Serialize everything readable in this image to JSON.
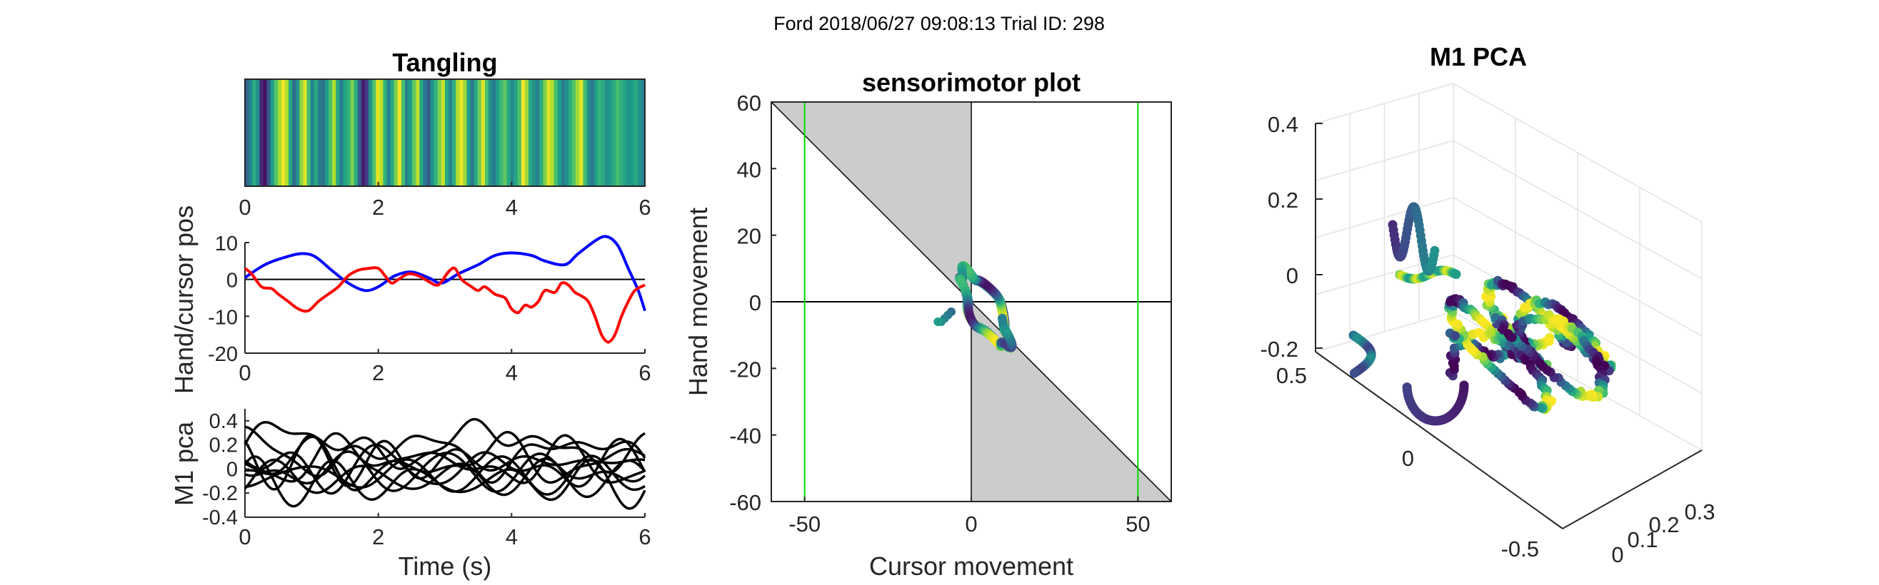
{
  "figure": {
    "suptitle": "Ford 2018/06/27 09:08:13 Trial ID: 298"
  },
  "chart_data": [
    {
      "id": "tangling",
      "type": "heatmap",
      "title": "Tangling",
      "xlim": [
        0,
        6
      ],
      "xticks": [
        "0",
        "2",
        "4",
        "6"
      ],
      "colormap": "viridis",
      "values": [
        0.32,
        0.45,
        0.62,
        0.5,
        0.12,
        0.05,
        0.28,
        0.55,
        0.72,
        0.86,
        0.98,
        0.88,
        0.6,
        0.35,
        0.5,
        0.82,
        0.95,
        0.7,
        0.45,
        0.6,
        0.42,
        0.38,
        0.55,
        0.7,
        0.88,
        0.6,
        0.42,
        0.58,
        0.65,
        0.8,
        0.62,
        0.3,
        0.08,
        0.18,
        0.5,
        0.72,
        0.96,
        0.9,
        0.65,
        0.45,
        0.6,
        0.8,
        0.98,
        0.7,
        0.45,
        0.55,
        0.75,
        0.9,
        0.6,
        0.4,
        0.3,
        0.5,
        0.65,
        0.8,
        0.92,
        0.6,
        0.45,
        0.62,
        0.88,
        0.97,
        0.85,
        0.55,
        0.4,
        0.6,
        0.78,
        0.95,
        0.7,
        0.5,
        0.42,
        0.55,
        0.68,
        0.75,
        0.6,
        0.48,
        0.58,
        0.72,
        0.98,
        0.85,
        0.6,
        0.5,
        0.45,
        0.62,
        0.8,
        0.95,
        0.88,
        0.7,
        0.55,
        0.42,
        0.5,
        0.62,
        0.74,
        0.86,
        0.96,
        0.7,
        0.5,
        0.4,
        0.55,
        0.65,
        0.6,
        0.5,
        0.55,
        0.62,
        0.7,
        0.64,
        0.58,
        0.52,
        0.55,
        0.6,
        0.5,
        0.45
      ]
    },
    {
      "id": "hand-cursor",
      "type": "line",
      "ylabel": "Hand/cursor pos",
      "xlim": [
        0,
        6
      ],
      "ylim": [
        -20,
        10
      ],
      "xticks": [
        "0",
        "2",
        "4",
        "6"
      ],
      "yticks": [
        "10",
        "0",
        "-10",
        "-20"
      ],
      "zero_line": true,
      "series": [
        {
          "color": "#0000ff",
          "points": [
            [
              0,
              0.5
            ],
            [
              0.3,
              4
            ],
            [
              0.6,
              6
            ],
            [
              0.85,
              7
            ],
            [
              1.05,
              6.2
            ],
            [
              1.3,
              2.5
            ],
            [
              1.55,
              -1
            ],
            [
              1.8,
              -3
            ],
            [
              2.0,
              -2
            ],
            [
              2.25,
              1
            ],
            [
              2.5,
              2
            ],
            [
              2.75,
              0.5
            ],
            [
              2.95,
              -1
            ],
            [
              3.2,
              1.5
            ],
            [
              3.5,
              4
            ],
            [
              3.75,
              6.5
            ],
            [
              4.0,
              7.2
            ],
            [
              4.3,
              6.5
            ],
            [
              4.5,
              5
            ],
            [
              4.8,
              4
            ],
            [
              5.0,
              7
            ],
            [
              5.3,
              11
            ],
            [
              5.45,
              11.5
            ],
            [
              5.6,
              9
            ],
            [
              5.75,
              3
            ],
            [
              5.9,
              -3
            ],
            [
              6.0,
              -8.5
            ]
          ]
        },
        {
          "color": "#ff0000",
          "points": [
            [
              0,
              3
            ],
            [
              0.1,
              1.5
            ],
            [
              0.25,
              -2
            ],
            [
              0.4,
              -2.5
            ],
            [
              0.5,
              -4
            ],
            [
              0.65,
              -6
            ],
            [
              0.8,
              -8
            ],
            [
              0.95,
              -8.5
            ],
            [
              1.1,
              -6
            ],
            [
              1.25,
              -4
            ],
            [
              1.4,
              -2
            ],
            [
              1.55,
              1
            ],
            [
              1.7,
              2.5
            ],
            [
              1.85,
              3
            ],
            [
              2.0,
              3
            ],
            [
              2.1,
              1
            ],
            [
              2.2,
              -1
            ],
            [
              2.3,
              0
            ],
            [
              2.45,
              1.5
            ],
            [
              2.6,
              1
            ],
            [
              2.75,
              -0.5
            ],
            [
              2.9,
              -1.5
            ],
            [
              3.05,
              2
            ],
            [
              3.15,
              3
            ],
            [
              3.25,
              0
            ],
            [
              3.4,
              -2
            ],
            [
              3.5,
              -3
            ],
            [
              3.6,
              -2
            ],
            [
              3.75,
              -4
            ],
            [
              3.9,
              -5
            ],
            [
              4.0,
              -8
            ],
            [
              4.1,
              -9
            ],
            [
              4.2,
              -7
            ],
            [
              4.3,
              -7.5
            ],
            [
              4.4,
              -6
            ],
            [
              4.5,
              -3
            ],
            [
              4.65,
              -3.5
            ],
            [
              4.75,
              -1
            ],
            [
              4.85,
              -1.5
            ],
            [
              4.95,
              -3.5
            ],
            [
              5.05,
              -4.5
            ],
            [
              5.15,
              -6
            ],
            [
              5.25,
              -10
            ],
            [
              5.35,
              -15
            ],
            [
              5.45,
              -17
            ],
            [
              5.55,
              -15
            ],
            [
              5.65,
              -10
            ],
            [
              5.75,
              -6
            ],
            [
              5.85,
              -3
            ],
            [
              6.0,
              -1.5
            ]
          ]
        }
      ]
    },
    {
      "id": "m1-pca-trace",
      "type": "line",
      "xlabel": "Time (s)",
      "ylabel": "M1 pca",
      "xlim": [
        0,
        6
      ],
      "ylim": [
        -0.4,
        0.5
      ],
      "xticks": [
        "0",
        "2",
        "4",
        "6"
      ],
      "yticks": [
        "0.4",
        "0.2",
        "0",
        "-0.2",
        "-0.4"
      ],
      "line_color": "#000000",
      "series_count": 10
    },
    {
      "id": "sensorimotor",
      "type": "scatter",
      "title": "sensorimotor plot",
      "xlabel": "Cursor movement",
      "ylabel": "Hand movement",
      "xlim": [
        -60,
        60
      ],
      "ylim": [
        -60,
        60
      ],
      "xticks": [
        "-50",
        "0",
        "50"
      ],
      "yticks": [
        "60",
        "40",
        "20",
        "0",
        "-20",
        "-40",
        "-60"
      ],
      "shade_color": "#cccccc",
      "vlines": [
        -50,
        50
      ],
      "vline_color": "#00dd00",
      "colormap": "viridis",
      "loop": {
        "center": [
          4,
          -2
        ],
        "semi_major": 13,
        "semi_minor": 4,
        "angle_deg": -60
      },
      "tail": [
        [
          -6,
          -3
        ],
        [
          -7,
          -4
        ],
        [
          -8,
          -5
        ],
        [
          -9,
          -6
        ],
        [
          -10,
          -6
        ]
      ]
    },
    {
      "id": "m1-pca-3d",
      "type": "scatter",
      "title": "M1 PCA",
      "zlim": [
        -0.2,
        0.4
      ],
      "zticks": [
        "0.4",
        "0.2",
        "0",
        "-0.2"
      ],
      "yticks": [
        "0.5",
        "0",
        "-0.5"
      ],
      "xticks": [
        "0",
        "0.1",
        "0.2",
        "0.3"
      ],
      "colormap": "viridis"
    }
  ]
}
